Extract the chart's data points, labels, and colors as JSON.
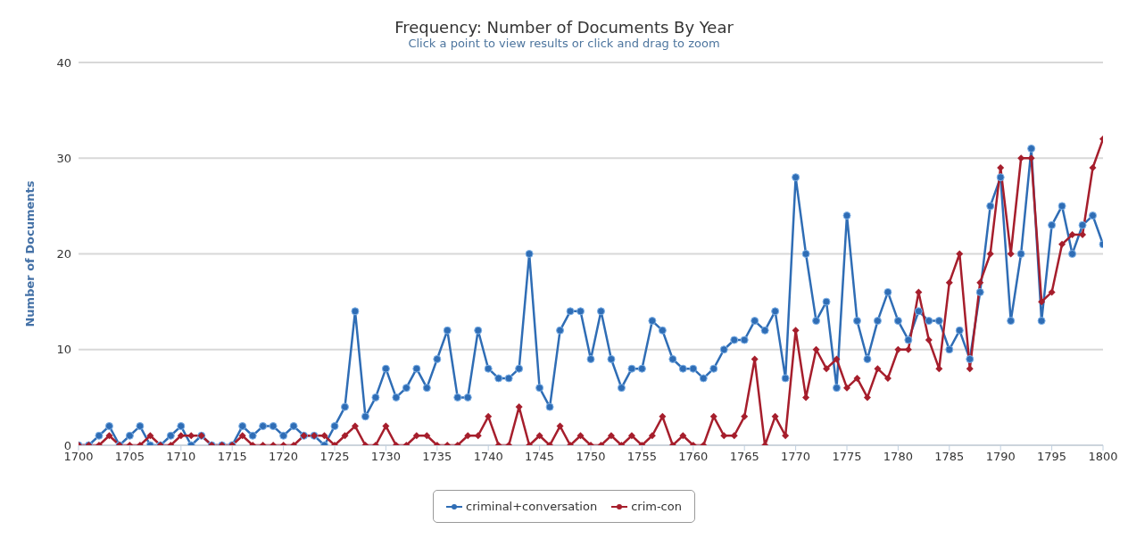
{
  "chart_data": {
    "type": "line",
    "title": "Frequency: Number of Documents By Year",
    "subtitle": "Click a point to view results or click and drag to zoom",
    "ylabel": "Number of Documents",
    "x": [
      1700,
      1701,
      1702,
      1703,
      1704,
      1705,
      1706,
      1707,
      1708,
      1709,
      1710,
      1711,
      1712,
      1713,
      1714,
      1715,
      1716,
      1717,
      1718,
      1719,
      1720,
      1721,
      1722,
      1723,
      1724,
      1725,
      1726,
      1727,
      1728,
      1729,
      1730,
      1731,
      1732,
      1733,
      1734,
      1735,
      1736,
      1737,
      1738,
      1739,
      1740,
      1741,
      1742,
      1743,
      1744,
      1745,
      1746,
      1747,
      1748,
      1749,
      1750,
      1751,
      1752,
      1753,
      1754,
      1755,
      1756,
      1757,
      1758,
      1759,
      1760,
      1761,
      1762,
      1763,
      1764,
      1765,
      1766,
      1767,
      1768,
      1769,
      1770,
      1771,
      1772,
      1773,
      1774,
      1775,
      1776,
      1777,
      1778,
      1779,
      1780,
      1781,
      1782,
      1783,
      1784,
      1785,
      1786,
      1787,
      1788,
      1789,
      1790,
      1791,
      1792,
      1793,
      1794,
      1795,
      1796,
      1797,
      1798,
      1799,
      1800
    ],
    "series": [
      {
        "name": "criminal+conversation",
        "color": "#2f6db5",
        "marker": "circle",
        "values": [
          0,
          0,
          1,
          2,
          0,
          1,
          2,
          0,
          0,
          1,
          2,
          0,
          1,
          0,
          0,
          0,
          2,
          1,
          2,
          2,
          1,
          2,
          1,
          1,
          0,
          2,
          4,
          14,
          3,
          5,
          8,
          5,
          6,
          8,
          6,
          9,
          12,
          5,
          5,
          12,
          8,
          7,
          7,
          8,
          20,
          6,
          4,
          12,
          14,
          14,
          9,
          14,
          9,
          6,
          8,
          8,
          13,
          12,
          9,
          8,
          8,
          7,
          8,
          10,
          11,
          11,
          13,
          12,
          14,
          7,
          28,
          20,
          13,
          15,
          6,
          24,
          13,
          9,
          13,
          16,
          13,
          11,
          14,
          13,
          13,
          10,
          12,
          9,
          16,
          25,
          28,
          13,
          20,
          31,
          13,
          23,
          25,
          20,
          23,
          24,
          21
        ]
      },
      {
        "name": "crim-con",
        "color": "#a61e2c",
        "marker": "diamond",
        "values": [
          0,
          0,
          0,
          1,
          0,
          0,
          0,
          1,
          0,
          0,
          1,
          1,
          1,
          0,
          0,
          0,
          1,
          0,
          0,
          0,
          0,
          0,
          1,
          1,
          1,
          0,
          1,
          2,
          0,
          0,
          2,
          0,
          0,
          1,
          1,
          0,
          0,
          0,
          1,
          1,
          3,
          0,
          0,
          4,
          0,
          1,
          0,
          2,
          0,
          1,
          0,
          0,
          1,
          0,
          1,
          0,
          1,
          3,
          0,
          1,
          0,
          0,
          3,
          1,
          1,
          3,
          9,
          0,
          3,
          1,
          12,
          5,
          10,
          8,
          9,
          6,
          7,
          5,
          8,
          7,
          10,
          10,
          16,
          11,
          8,
          17,
          20,
          8,
          17,
          20,
          29,
          20,
          30,
          30,
          15,
          16,
          21,
          22,
          22,
          29,
          32
        ]
      }
    ],
    "xlim": [
      1700,
      1800
    ],
    "xticks": [
      1700,
      1705,
      1710,
      1715,
      1720,
      1725,
      1730,
      1735,
      1740,
      1745,
      1750,
      1755,
      1760,
      1765,
      1770,
      1775,
      1780,
      1785,
      1790,
      1795,
      1800
    ],
    "ylim": [
      0,
      40
    ],
    "yticks": [
      0,
      10,
      20,
      30,
      40
    ],
    "grid": "y",
    "legend": "bottom"
  }
}
